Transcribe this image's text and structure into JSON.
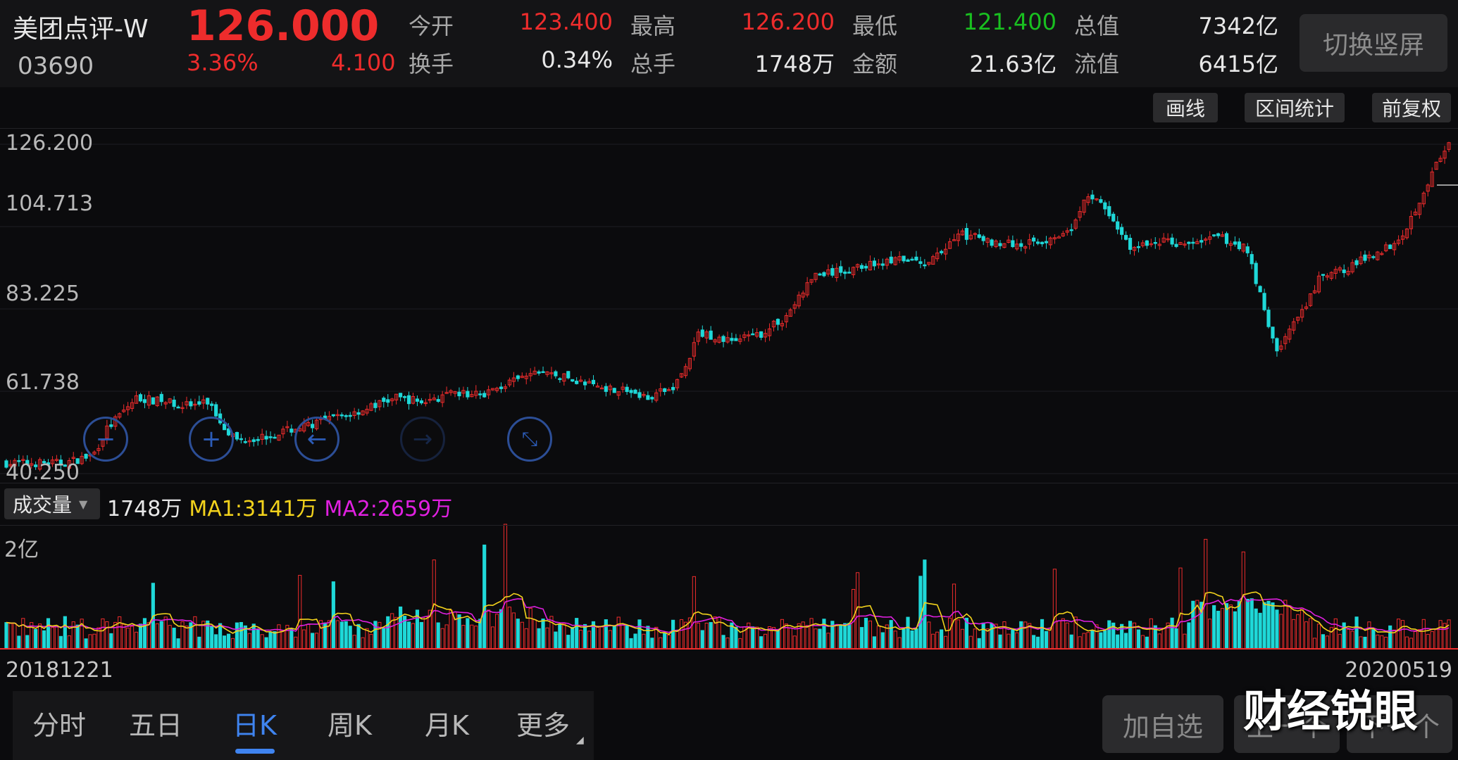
{
  "stock": {
    "name": "美团点评-W",
    "code": "03690",
    "price": "126.000",
    "change_pct": "3.36%",
    "change_amt": "4.100"
  },
  "stats": {
    "open_label": "今开",
    "open": "123.400",
    "high_label": "最高",
    "high": "126.200",
    "low_label": "最低",
    "low": "121.400",
    "mktcap_label": "总值",
    "mktcap": "7342亿",
    "turnover_label": "换手",
    "turnover": "0.34%",
    "lots_label": "总手",
    "lots": "1748万",
    "amount_label": "金额",
    "amount": "21.63亿",
    "float_label": "流值",
    "float": "6415亿"
  },
  "actions": {
    "switch_vertical": "切换竖屏",
    "draw": "画线",
    "range_stats": "区间统计",
    "adjust": "前复权"
  },
  "axis": {
    "y1": "126.200",
    "y2": "104.713",
    "y3": "83.225",
    "y4": "61.738",
    "y5": "40.250",
    "vol_top": "2亿"
  },
  "volume": {
    "selector": "成交量",
    "current": "1748万",
    "ma1": "MA1:3141万",
    "ma2": "MA2:2659万"
  },
  "dates": {
    "start": "20181221",
    "end": "20200519"
  },
  "tabs": [
    "分时",
    "五日",
    "日K",
    "周K",
    "月K",
    "更多"
  ],
  "active_tab": "日K",
  "bottom": {
    "add_watch": "加自选",
    "prev": "上一个",
    "next": "下一个"
  },
  "watermark": "财经锐眼",
  "colors": {
    "up": "#ee2c2c",
    "down": "#1fd8d8",
    "ma1": "#f2d21c",
    "ma2": "#e020e0",
    "accent": "#3f84f0"
  },
  "chart_data": {
    "type": "candlestick",
    "y_range": [
      40.25,
      126.2
    ],
    "y_ticks": [
      "126.200",
      "104.713",
      "83.225",
      "61.738",
      "40.250"
    ],
    "x_start": "20181221",
    "x_end": "20200519",
    "close_path": [
      [
        0,
        43
      ],
      [
        0.04,
        43
      ],
      [
        0.06,
        45
      ],
      [
        0.07,
        52
      ],
      [
        0.09,
        60
      ],
      [
        0.11,
        59
      ],
      [
        0.13,
        58
      ],
      [
        0.14,
        59
      ],
      [
        0.15,
        53
      ],
      [
        0.16,
        49
      ],
      [
        0.18,
        50
      ],
      [
        0.2,
        52
      ],
      [
        0.24,
        56
      ],
      [
        0.27,
        60
      ],
      [
        0.29,
        59
      ],
      [
        0.31,
        61
      ],
      [
        0.33,
        61
      ],
      [
        0.35,
        64
      ],
      [
        0.37,
        67
      ],
      [
        0.39,
        65
      ],
      [
        0.41,
        63
      ],
      [
        0.43,
        62
      ],
      [
        0.44,
        60
      ],
      [
        0.46,
        62
      ],
      [
        0.47,
        67
      ],
      [
        0.48,
        77
      ],
      [
        0.5,
        75
      ],
      [
        0.52,
        76
      ],
      [
        0.54,
        81
      ],
      [
        0.56,
        92
      ],
      [
        0.58,
        93
      ],
      [
        0.6,
        95
      ],
      [
        0.62,
        96
      ],
      [
        0.64,
        95
      ],
      [
        0.66,
        103
      ],
      [
        0.68,
        101
      ],
      [
        0.7,
        100
      ],
      [
        0.72,
        101
      ],
      [
        0.74,
        105
      ],
      [
        0.75,
        113
      ],
      [
        0.76,
        110
      ],
      [
        0.78,
        99
      ],
      [
        0.8,
        101
      ],
      [
        0.82,
        100
      ],
      [
        0.84,
        102
      ],
      [
        0.86,
        99
      ],
      [
        0.87,
        86
      ],
      [
        0.88,
        72
      ],
      [
        0.89,
        78
      ],
      [
        0.9,
        83
      ],
      [
        0.91,
        91
      ],
      [
        0.93,
        94
      ],
      [
        0.95,
        98
      ],
      [
        0.96,
        100
      ],
      [
        0.97,
        104
      ],
      [
        0.98,
        112
      ],
      [
        0.99,
        120
      ],
      [
        1,
        126
      ]
    ],
    "volume_unit": "万",
    "volume_latest": 1748,
    "ma1": 3141,
    "ma2": 2659
  }
}
